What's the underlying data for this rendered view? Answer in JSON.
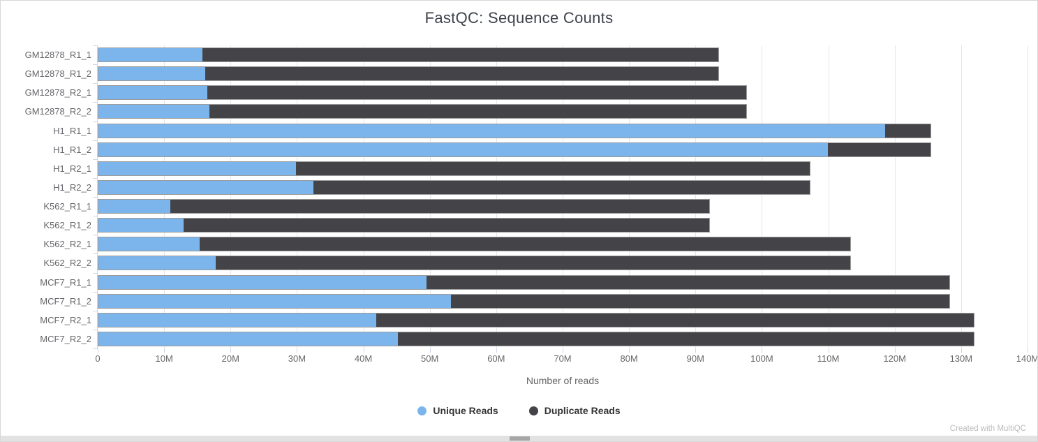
{
  "page": {
    "credit": "Created with MultiQC"
  },
  "chart_data": {
    "type": "bar",
    "orientation": "horizontal",
    "stacked": true,
    "title": "FastQC: Sequence Counts",
    "xlabel": "Number of reads",
    "xlim_millions": [
      0,
      140
    ],
    "x_ticks": [
      "0",
      "10M",
      "20M",
      "30M",
      "40M",
      "50M",
      "60M",
      "70M",
      "80M",
      "90M",
      "100M",
      "110M",
      "120M",
      "130M",
      "140M"
    ],
    "grid": "vertical",
    "legend_position": "bottom",
    "categories": [
      "GM12878_R1_1",
      "GM12878_R1_2",
      "GM12878_R2_1",
      "GM12878_R2_2",
      "H1_R1_1",
      "H1_R1_2",
      "H1_R2_1",
      "H1_R2_2",
      "K562_R1_1",
      "K562_R1_2",
      "K562_R2_1",
      "K562_R2_2",
      "MCF7_R1_1",
      "MCF7_R1_2",
      "MCF7_R2_1",
      "MCF7_R2_2"
    ],
    "series": [
      {
        "name": "Unique Reads",
        "color": "#7cb5ec",
        "values_millions": [
          15.7,
          16.1,
          16.4,
          16.7,
          118.7,
          110.0,
          29.8,
          32.4,
          10.9,
          12.9,
          15.3,
          17.7,
          49.5,
          53.2,
          41.9,
          45.2
        ]
      },
      {
        "name": "Duplicate Reads",
        "color": "#434348",
        "values_millions": [
          77.8,
          77.4,
          81.3,
          81.0,
          6.8,
          15.5,
          77.5,
          74.9,
          81.3,
          79.3,
          98.1,
          95.7,
          78.8,
          75.1,
          90.1,
          86.8
        ]
      }
    ],
    "colors": {
      "gridline": "#e6e6e6",
      "axis_tick": "#ccd6eb",
      "axis_text": "#666666",
      "title_text": "#3e434a",
      "legend_text": "#333333"
    }
  }
}
